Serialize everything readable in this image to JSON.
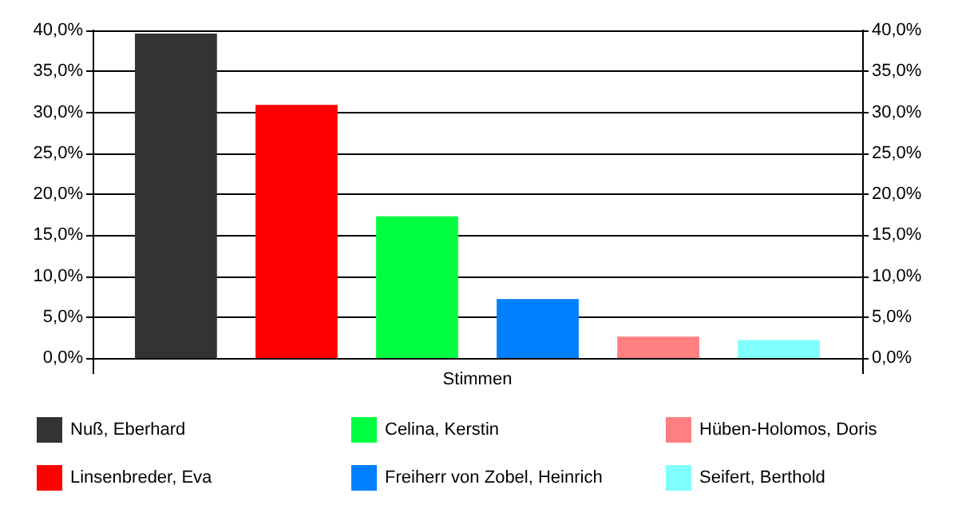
{
  "chart_data": {
    "type": "bar",
    "categories": [
      "Stimmen"
    ],
    "series": [
      {
        "name": "Nuß, Eberhard",
        "color": "#333333",
        "values": [
          39.6
        ]
      },
      {
        "name": "Linsenbreder, Eva",
        "color": "#ff0000",
        "values": [
          30.9
        ]
      },
      {
        "name": "Celina, Kerstin",
        "color": "#00ff40",
        "values": [
          17.3
        ]
      },
      {
        "name": "Freiherr von Zobel, Heinrich",
        "color": "#0080ff",
        "values": [
          7.2
        ]
      },
      {
        "name": "Hüben-Holomos, Doris",
        "color": "#ff8080",
        "values": [
          2.6
        ]
      },
      {
        "name": "Seifert, Berthold",
        "color": "#80ffff",
        "values": [
          2.2
        ]
      }
    ],
    "ylim": [
      0,
      40
    ],
    "yticks": [
      {
        "value": 0,
        "label": "0,0%"
      },
      {
        "value": 5,
        "label": "5,0%"
      },
      {
        "value": 10,
        "label": "10,0%"
      },
      {
        "value": 15,
        "label": "15,0%"
      },
      {
        "value": 20,
        "label": "20,0%"
      },
      {
        "value": 25,
        "label": "25,0%"
      },
      {
        "value": 30,
        "label": "30,0%"
      },
      {
        "value": 35,
        "label": "35,0%"
      },
      {
        "value": 40,
        "label": "40,0%"
      }
    ],
    "grid": "y",
    "legend": "bottom"
  }
}
